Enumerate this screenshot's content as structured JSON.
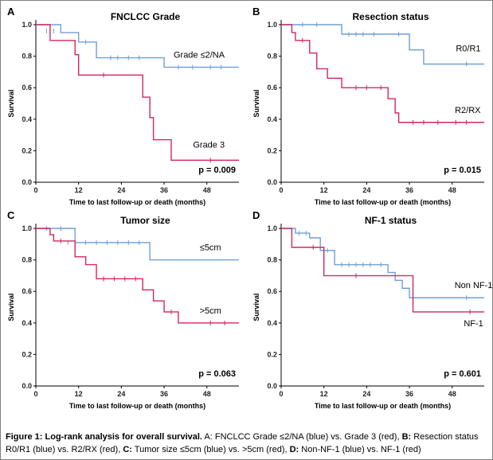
{
  "caption": {
    "bold": "Figure 1: Log-rank analysis for overall survival.",
    "text_1": " A: FNCLCC Grade ≤2/NA (blue) vs. Grade 3 (red), ",
    "b_label": "B:",
    "text_2": " Resection status R0/R1 (blue) vs. R2/RX (red), ",
    "c_label": "C:",
    "text_3": " Tumor size ≤5cm (blue) vs. >5cm (red), ",
    "d_label": "D:",
    "text_4": " Non-NF-1 (blue) vs. NF-1 (red)"
  },
  "colors": {
    "blue": "#6f9fd8",
    "red": "#d0285a",
    "axis": "#000000"
  },
  "chart_data": [
    {
      "type": "line",
      "panel": "A",
      "title": "FNCLCC Grade",
      "xlabel": "Time to last follow-up or death (months)",
      "ylabel": "Survival",
      "xlim": [
        0,
        57
      ],
      "ylim": [
        0,
        1.0
      ],
      "xticks": [
        "0",
        "12",
        "24",
        "36",
        "48"
      ],
      "yticks": [
        "0.0",
        "0.2",
        "0.4",
        "0.6",
        "0.8",
        "1.0"
      ],
      "p_value": "p = 0.009",
      "series": [
        {
          "name": "Grade ≤2/NA",
          "color": "blue",
          "steps": [
            [
              0,
              1.0
            ],
            [
              7,
              0.95
            ],
            [
              12,
              0.89
            ],
            [
              17,
              0.79
            ],
            [
              36,
              0.73
            ],
            [
              57,
              0.73
            ]
          ],
          "censor": [
            [
              3,
              0.96
            ],
            [
              5,
              0.96
            ],
            [
              14,
              0.89
            ],
            [
              21,
              0.79
            ],
            [
              23,
              0.79
            ],
            [
              26,
              0.79
            ],
            [
              29,
              0.79
            ],
            [
              40,
              0.73
            ],
            [
              44,
              0.73
            ],
            [
              49,
              0.73
            ],
            [
              52,
              0.73
            ]
          ]
        },
        {
          "name": "Grade 3",
          "color": "red",
          "steps": [
            [
              0,
              1.0
            ],
            [
              4,
              0.9
            ],
            [
              11,
              0.81
            ],
            [
              12,
              0.68
            ],
            [
              30,
              0.54
            ],
            [
              32,
              0.41
            ],
            [
              33,
              0.27
            ],
            [
              38,
              0.14
            ],
            [
              57,
              0.14
            ]
          ],
          "censor": [
            [
              19,
              0.68
            ],
            [
              49,
              0.14
            ]
          ]
        }
      ]
    },
    {
      "type": "line",
      "panel": "B",
      "title": "Resection status",
      "xlabel": "Time to last follow-up or death (months)",
      "ylabel": "Survival",
      "xlim": [
        0,
        57
      ],
      "ylim": [
        0,
        1.0
      ],
      "xticks": [
        "0",
        "12",
        "24",
        "36",
        "48"
      ],
      "yticks": [
        "0.0",
        "0.2",
        "0.4",
        "0.6",
        "0.8",
        "1.0"
      ],
      "p_value": "p = 0.015",
      "series": [
        {
          "name": "R0/R1",
          "color": "blue",
          "steps": [
            [
              0,
              1.0
            ],
            [
              17,
              0.94
            ],
            [
              36,
              0.84
            ],
            [
              40,
              0.75
            ],
            [
              57,
              0.75
            ]
          ],
          "censor": [
            [
              6,
              1.0
            ],
            [
              10,
              1.0
            ],
            [
              19,
              0.94
            ],
            [
              21,
              0.94
            ],
            [
              23,
              0.94
            ],
            [
              26,
              0.94
            ],
            [
              33,
              0.94
            ],
            [
              52,
              0.75
            ]
          ]
        },
        {
          "name": "R2/RX",
          "color": "red",
          "steps": [
            [
              0,
              1.0
            ],
            [
              3,
              0.95
            ],
            [
              4,
              0.9
            ],
            [
              8,
              0.82
            ],
            [
              10,
              0.72
            ],
            [
              13,
              0.66
            ],
            [
              17,
              0.6
            ],
            [
              30,
              0.53
            ],
            [
              32,
              0.44
            ],
            [
              33,
              0.38
            ],
            [
              57,
              0.38
            ]
          ],
          "censor": [
            [
              6,
              0.9
            ],
            [
              21,
              0.6
            ],
            [
              24,
              0.6
            ],
            [
              28,
              0.6
            ],
            [
              37,
              0.38
            ],
            [
              40,
              0.38
            ],
            [
              44,
              0.38
            ],
            [
              49,
              0.38
            ],
            [
              52,
              0.38
            ]
          ]
        }
      ]
    },
    {
      "type": "line",
      "panel": "C",
      "title": "Tumor size",
      "xlabel": "Time to last follow-up or death (months)",
      "ylabel": "Survival",
      "xlim": [
        0,
        57
      ],
      "ylim": [
        0,
        1.0
      ],
      "xticks": [
        "0",
        "12",
        "24",
        "36",
        "48"
      ],
      "yticks": [
        "0.0",
        "0.2",
        "0.4",
        "0.6",
        "0.8",
        "1.0"
      ],
      "p_value": "p = 0.063",
      "series": [
        {
          "name": "≤5cm",
          "color": "blue",
          "steps": [
            [
              0,
              1.0
            ],
            [
              11,
              0.91
            ],
            [
              32,
              0.8
            ],
            [
              57,
              0.8
            ]
          ],
          "censor": [
            [
              3,
              1.0
            ],
            [
              7,
              1.0
            ],
            [
              9,
              0.91
            ],
            [
              14,
              0.91
            ],
            [
              17,
              0.91
            ],
            [
              20,
              0.91
            ],
            [
              23,
              0.91
            ],
            [
              26,
              0.91
            ],
            [
              29,
              0.91
            ]
          ]
        },
        {
          "name": ">5cm",
          "color": "red",
          "steps": [
            [
              0,
              1.0
            ],
            [
              4,
              0.96
            ],
            [
              5,
              0.92
            ],
            [
              11,
              0.82
            ],
            [
              14,
              0.77
            ],
            [
              17,
              0.68
            ],
            [
              30,
              0.61
            ],
            [
              33,
              0.54
            ],
            [
              36,
              0.47
            ],
            [
              40,
              0.4
            ],
            [
              57,
              0.4
            ]
          ],
          "censor": [
            [
              7,
              0.92
            ],
            [
              19,
              0.68
            ],
            [
              22,
              0.68
            ],
            [
              25,
              0.68
            ],
            [
              28,
              0.68
            ],
            [
              38,
              0.47
            ],
            [
              49,
              0.4
            ],
            [
              53,
              0.4
            ]
          ]
        }
      ]
    },
    {
      "type": "line",
      "panel": "D",
      "title": "NF-1 status",
      "xlabel": "Time to last follow-up or death (months)",
      "ylabel": "Survival",
      "xlim": [
        0,
        57
      ],
      "ylim": [
        0,
        1.0
      ],
      "xticks": [
        "0",
        "12",
        "24",
        "36",
        "48"
      ],
      "yticks": [
        "0.0",
        "0.2",
        "0.4",
        "0.6",
        "0.8",
        "1.0"
      ],
      "p_value": "p = 0.601",
      "series": [
        {
          "name": "Non NF-1",
          "color": "blue",
          "steps": [
            [
              0,
              1.0
            ],
            [
              4,
              0.97
            ],
            [
              8,
              0.94
            ],
            [
              11,
              0.86
            ],
            [
              15,
              0.77
            ],
            [
              30,
              0.72
            ],
            [
              32,
              0.67
            ],
            [
              34,
              0.62
            ],
            [
              36,
              0.56
            ],
            [
              57,
              0.56
            ]
          ],
          "censor": [
            [
              5,
              0.97
            ],
            [
              7,
              0.97
            ],
            [
              13,
              0.86
            ],
            [
              17,
              0.77
            ],
            [
              19,
              0.77
            ],
            [
              21,
              0.77
            ],
            [
              23,
              0.77
            ],
            [
              25,
              0.77
            ],
            [
              28,
              0.77
            ],
            [
              52,
              0.56
            ]
          ]
        },
        {
          "name": "NF-1",
          "color": "red",
          "steps": [
            [
              0,
              1.0
            ],
            [
              3,
              0.88
            ],
            [
              12,
              0.7
            ],
            [
              37,
              0.47
            ],
            [
              57,
              0.47
            ]
          ],
          "censor": [
            [
              9,
              0.88
            ],
            [
              21,
              0.7
            ],
            [
              53,
              0.47
            ]
          ]
        }
      ]
    }
  ]
}
